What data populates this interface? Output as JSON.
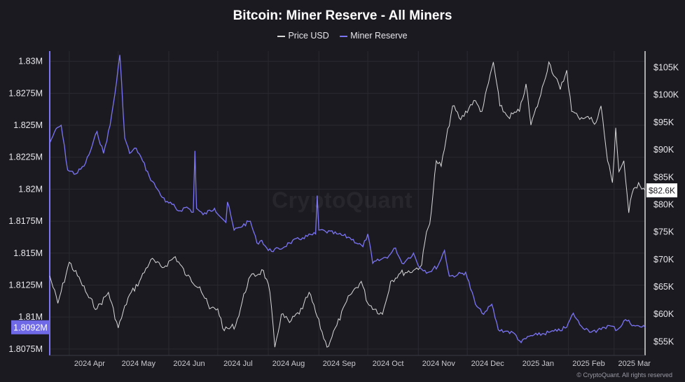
{
  "chart_data": {
    "type": "line",
    "title": "Bitcoin: Miner Reserve - All Miners",
    "legend_position": "top-center",
    "grid": true,
    "series": [
      {
        "name": "Price USD",
        "axis": "right",
        "color": "#d9d9d9",
        "x": [
          "2024-03-20",
          "2024-03-25",
          "2024-04-01",
          "2024-04-08",
          "2024-04-13",
          "2024-04-18",
          "2024-04-25",
          "2024-05-01",
          "2024-05-07",
          "2024-05-14",
          "2024-05-21",
          "2024-05-28",
          "2024-06-05",
          "2024-06-12",
          "2024-06-20",
          "2024-06-26",
          "2024-07-01",
          "2024-07-05",
          "2024-07-12",
          "2024-07-20",
          "2024-07-29",
          "2024-08-02",
          "2024-08-05",
          "2024-08-09",
          "2024-08-14",
          "2024-08-22",
          "2024-08-26",
          "2024-09-06",
          "2024-09-12",
          "2024-09-20",
          "2024-09-27",
          "2024-10-01",
          "2024-10-10",
          "2024-10-15",
          "2024-10-21",
          "2024-10-29",
          "2024-11-03",
          "2024-11-06",
          "2024-11-08",
          "2024-11-12",
          "2024-11-15",
          "2024-11-22",
          "2024-11-27",
          "2024-12-05",
          "2024-12-10",
          "2024-12-17",
          "2024-12-21",
          "2024-12-26",
          "2025-01-02",
          "2025-01-06",
          "2025-01-09",
          "2025-01-15",
          "2025-01-20",
          "2025-01-27",
          "2025-01-31",
          "2025-02-03",
          "2025-02-07",
          "2025-02-12",
          "2025-02-18",
          "2025-02-21",
          "2025-02-25",
          "2025-02-28",
          "2025-03-02",
          "2025-03-04",
          "2025-03-07",
          "2025-03-10",
          "2025-03-12",
          "2025-03-16",
          "2025-03-20"
        ],
        "y": [
          67000,
          62000,
          69500,
          66000,
          63000,
          61000,
          64000,
          57500,
          63000,
          66000,
          70000,
          68500,
          70500,
          67000,
          65000,
          61000,
          61000,
          57000,
          58000,
          66500,
          68000,
          64000,
          54000,
          60000,
          58500,
          61000,
          64000,
          54000,
          58000,
          63500,
          66000,
          62000,
          60000,
          66000,
          67500,
          68000,
          69000,
          75000,
          76500,
          88000,
          87000,
          98000,
          95500,
          99000,
          97000,
          106000,
          98000,
          96000,
          97000,
          102000,
          94500,
          100000,
          106000,
          101000,
          104500,
          97000,
          96000,
          96000,
          95000,
          98000,
          88000,
          84000,
          94000,
          86000,
          88000,
          78500,
          82000,
          84000,
          82600
        ]
      },
      {
        "name": "Miner Reserve",
        "axis": "left",
        "color": "#7b74f5",
        "x": [
          "2024-03-20",
          "2024-03-23",
          "2024-03-27",
          "2024-03-31",
          "2024-04-05",
          "2024-04-10",
          "2024-04-14",
          "2024-04-18",
          "2024-04-22",
          "2024-04-26",
          "2024-04-29",
          "2024-05-02",
          "2024-05-05",
          "2024-05-08",
          "2024-05-12",
          "2024-05-16",
          "2024-05-20",
          "2024-05-25",
          "2024-05-30",
          "2024-06-03",
          "2024-06-07",
          "2024-06-12",
          "2024-06-16",
          "2024-06-17",
          "2024-06-18",
          "2024-06-22",
          "2024-06-29",
          "2024-07-06",
          "2024-07-07",
          "2024-07-11",
          "2024-07-14",
          "2024-07-21",
          "2024-07-25",
          "2024-07-28",
          "2024-08-01",
          "2024-08-08",
          "2024-08-14",
          "2024-08-22",
          "2024-08-30",
          "2024-08-31",
          "2024-09-01",
          "2024-09-05",
          "2024-09-12",
          "2024-09-20",
          "2024-09-28",
          "2024-10-01",
          "2024-10-04",
          "2024-10-09",
          "2024-10-14",
          "2024-10-18",
          "2024-10-22",
          "2024-10-25",
          "2024-10-29",
          "2024-11-01",
          "2024-11-07",
          "2024-11-13",
          "2024-11-17",
          "2024-11-20",
          "2024-11-25",
          "2024-11-30",
          "2024-12-06",
          "2024-12-10",
          "2024-12-13",
          "2024-12-16",
          "2024-12-20",
          "2024-12-25",
          "2024-12-30",
          "2025-01-03",
          "2025-01-08",
          "2025-01-13",
          "2025-01-20",
          "2025-01-25",
          "2025-01-31",
          "2025-02-04",
          "2025-02-08",
          "2025-02-13",
          "2025-02-18",
          "2025-02-22",
          "2025-02-27",
          "2025-03-03",
          "2025-03-08",
          "2025-03-14",
          "2025-03-20"
        ],
        "y": [
          1.8236,
          1.8245,
          1.825,
          1.8215,
          1.8212,
          1.8218,
          1.823,
          1.8245,
          1.8228,
          1.825,
          1.8275,
          1.8305,
          1.824,
          1.8228,
          1.8232,
          1.8222,
          1.821,
          1.82,
          1.819,
          1.8188,
          1.8183,
          1.8186,
          1.8182,
          1.823,
          1.8185,
          1.818,
          1.8185,
          1.8174,
          1.819,
          1.8168,
          1.817,
          1.8175,
          1.8158,
          1.816,
          1.8152,
          1.8153,
          1.8158,
          1.8162,
          1.8165,
          1.8195,
          1.8168,
          1.8167,
          1.8165,
          1.8162,
          1.8155,
          1.8165,
          1.8142,
          1.8145,
          1.8148,
          1.8154,
          1.8142,
          1.8145,
          1.815,
          1.814,
          1.8135,
          1.814,
          1.8152,
          1.8132,
          1.8133,
          1.8135,
          1.811,
          1.8103,
          1.8105,
          1.811,
          1.809,
          1.8089,
          1.8087,
          1.808,
          1.8085,
          1.8086,
          1.8088,
          1.8089,
          1.8092,
          1.8103,
          1.8094,
          1.809,
          1.8088,
          1.8092,
          1.8093,
          1.809,
          1.8098,
          1.8093,
          1.8092
        ]
      }
    ],
    "x_tick_labels": [
      "2024 Apr",
      "2024 May",
      "2024 Jun",
      "2024 Jul",
      "2024 Aug",
      "2024 Sep",
      "2024 Oct",
      "2024 Nov",
      "2024 Dec",
      "2025 Jan",
      "2025 Feb",
      "2025 Mar"
    ],
    "y_left": {
      "ticks": [
        1.83,
        1.8275,
        1.825,
        1.8225,
        1.82,
        1.8175,
        1.815,
        1.8125,
        1.81,
        1.8075
      ],
      "tick_labels": [
        "1.83M",
        "1.8275M",
        "1.825M",
        "1.8225M",
        "1.82M",
        "1.8175M",
        "1.815M",
        "1.8125M",
        "1.81M",
        "1.8075M"
      ],
      "range": [
        1.807,
        1.8308
      ]
    },
    "y_right": {
      "ticks": [
        105000,
        100000,
        95000,
        90000,
        85000,
        80000,
        75000,
        70000,
        65000,
        60000,
        55000
      ],
      "tick_labels": [
        "$105K",
        "$100K",
        "$95K",
        "$90K",
        "$85K",
        "$80K",
        "$75K",
        "$70K",
        "$65K",
        "$60K",
        "$55K"
      ],
      "range": [
        52500,
        108000
      ]
    },
    "current_left_label": "1.8092M",
    "current_right_label": "$82.6K"
  },
  "watermark": "CryptoQuant",
  "copyright": "© CryptoQuant. All rights reserved",
  "colors": {
    "background": "#1b1a21",
    "grid": "#2a2930",
    "price": "#d9d9d9",
    "reserve": "#7b74f5"
  }
}
